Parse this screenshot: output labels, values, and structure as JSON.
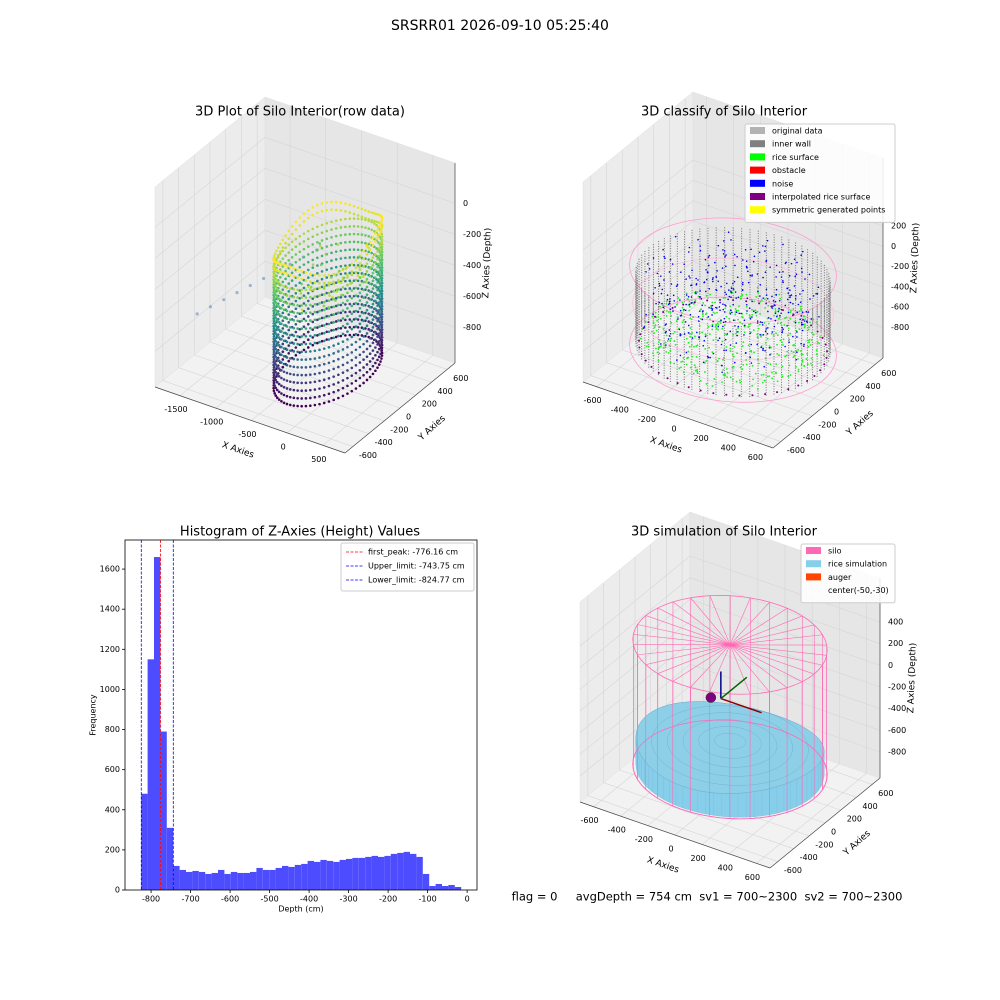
{
  "title": "SRSRR01 2026-09-10 05:25:40",
  "footer": "flag = 0     avgDepth = 754 cm  sv1 = 700~2300  sv2 = 700~2300",
  "chart_data": [
    {
      "type": "scatter3d",
      "title": "3D Plot of Silo Interior(row data)",
      "xlabel": "X Axies",
      "ylabel": "Y Axies",
      "zlabel": "Z Axies (Depth)",
      "xlim": [
        -1850,
        810
      ],
      "ylim": [
        -700,
        700
      ],
      "zlim": [
        -1030,
        260
      ],
      "xticks": [
        -1500,
        -1000,
        -500,
        0,
        500
      ],
      "yticks": [
        -600,
        -400,
        -200,
        0,
        200,
        400,
        600
      ],
      "zticks": [
        0,
        -200,
        -400,
        -600,
        -800
      ]
    },
    {
      "type": "scatter3d",
      "title": "3D classify of Silo Interior",
      "xlabel": "X Axies",
      "ylabel": "Y Axies",
      "zlabel": "Z Axies (Depth)",
      "xlim": [
        -700,
        700
      ],
      "ylim": [
        -700,
        700
      ],
      "zlim": [
        -1100,
        870
      ],
      "xticks": [
        -600,
        -400,
        -200,
        0,
        200,
        400,
        600
      ],
      "yticks": [
        -600,
        -400,
        -200,
        0,
        200,
        400,
        600
      ],
      "zticks": [
        200,
        0,
        -200,
        -400,
        -600,
        -800
      ],
      "series": [
        {
          "name": "original data",
          "color": "#b3b3b3"
        },
        {
          "name": "inner wall",
          "color": "#808080"
        },
        {
          "name": "rice surface",
          "color": "#00ff00"
        },
        {
          "name": "obstacle",
          "color": "#ff0000"
        },
        {
          "name": "noise",
          "color": "#0000ff"
        },
        {
          "name": "interpolated rice surface",
          "color": "#800080"
        },
        {
          "name": "symmetric generated points",
          "color": "#ffff00"
        }
      ]
    },
    {
      "type": "histogram",
      "title": "Histogram of Z-Axies (Height) Values",
      "xlabel": "Depth (cm)",
      "ylabel": "Frequency",
      "color": "#4d4dff",
      "xlim": [
        -866,
        25
      ],
      "ylim": [
        0,
        1745
      ],
      "xticks": [
        -800,
        -700,
        -600,
        -500,
        -400,
        -300,
        -200,
        -100,
        0
      ],
      "yticks": [
        0,
        200,
        400,
        600,
        800,
        1000,
        1200,
        1400,
        1600
      ],
      "bins": [
        -825.0,
        -808.8,
        -792.6,
        -776.4,
        -760.2,
        -744.0,
        -727.8,
        -711.6,
        -695.4,
        -679.2,
        -663.0,
        -646.8,
        -630.6,
        -614.4,
        -598.2,
        -582.0,
        -565.8,
        -549.6,
        -533.4,
        -517.2,
        -501.0,
        -484.8,
        -468.6,
        -452.4,
        -436.2,
        -420.0,
        -403.8,
        -387.6,
        -371.4,
        -355.2,
        -339.0,
        -322.8,
        -306.6,
        -290.4,
        -274.2,
        -258.0,
        -241.8,
        -225.6,
        -209.4,
        -193.2,
        -177.0,
        -160.8,
        -144.6,
        -128.4,
        -112.2,
        -96.0,
        -79.8,
        -63.6,
        -47.4,
        -31.2,
        -15.0
      ],
      "values": [
        480,
        1150,
        1660,
        790,
        310,
        120,
        100,
        90,
        95,
        90,
        80,
        85,
        100,
        80,
        90,
        85,
        85,
        90,
        110,
        100,
        100,
        110,
        120,
        115,
        125,
        130,
        145,
        140,
        150,
        145,
        140,
        150,
        155,
        160,
        160,
        165,
        170,
        165,
        170,
        180,
        185,
        190,
        180,
        165,
        80,
        20,
        30,
        20,
        25,
        15
      ],
      "vlines": [
        {
          "name": "first_peak: -776.16 cm",
          "value": -776.16,
          "color": "#ff0000"
        },
        {
          "name": "Upper_limit: -743.75 cm",
          "value": -743.75,
          "color": "#0000ff"
        },
        {
          "name": "Lower_limit: -824.77 cm",
          "value": -824.77,
          "color": "#0000ff"
        }
      ]
    },
    {
      "type": "scatter3d",
      "title": "3D simulation of Silo Interior",
      "xlabel": "X Axies",
      "ylabel": "Y Axies",
      "zlabel": "Z Axies (Depth)",
      "xlim": [
        -700,
        700
      ],
      "ylim": [
        -700,
        700
      ],
      "zlim": [
        -1040,
        806
      ],
      "xticks": [
        -600,
        -400,
        -200,
        0,
        200,
        400,
        600
      ],
      "yticks": [
        -600,
        -400,
        -200,
        0,
        200,
        400,
        600
      ],
      "zticks": [
        400,
        200,
        0,
        -200,
        -400,
        -600,
        -800
      ],
      "series": [
        {
          "name": "silo",
          "color": "#ff69b4"
        },
        {
          "name": "rice simulation",
          "color": "#87ceeb"
        },
        {
          "name": "auger",
          "color": "#ff4500"
        },
        {
          "name": "center(-50,-30)"
        }
      ]
    }
  ]
}
